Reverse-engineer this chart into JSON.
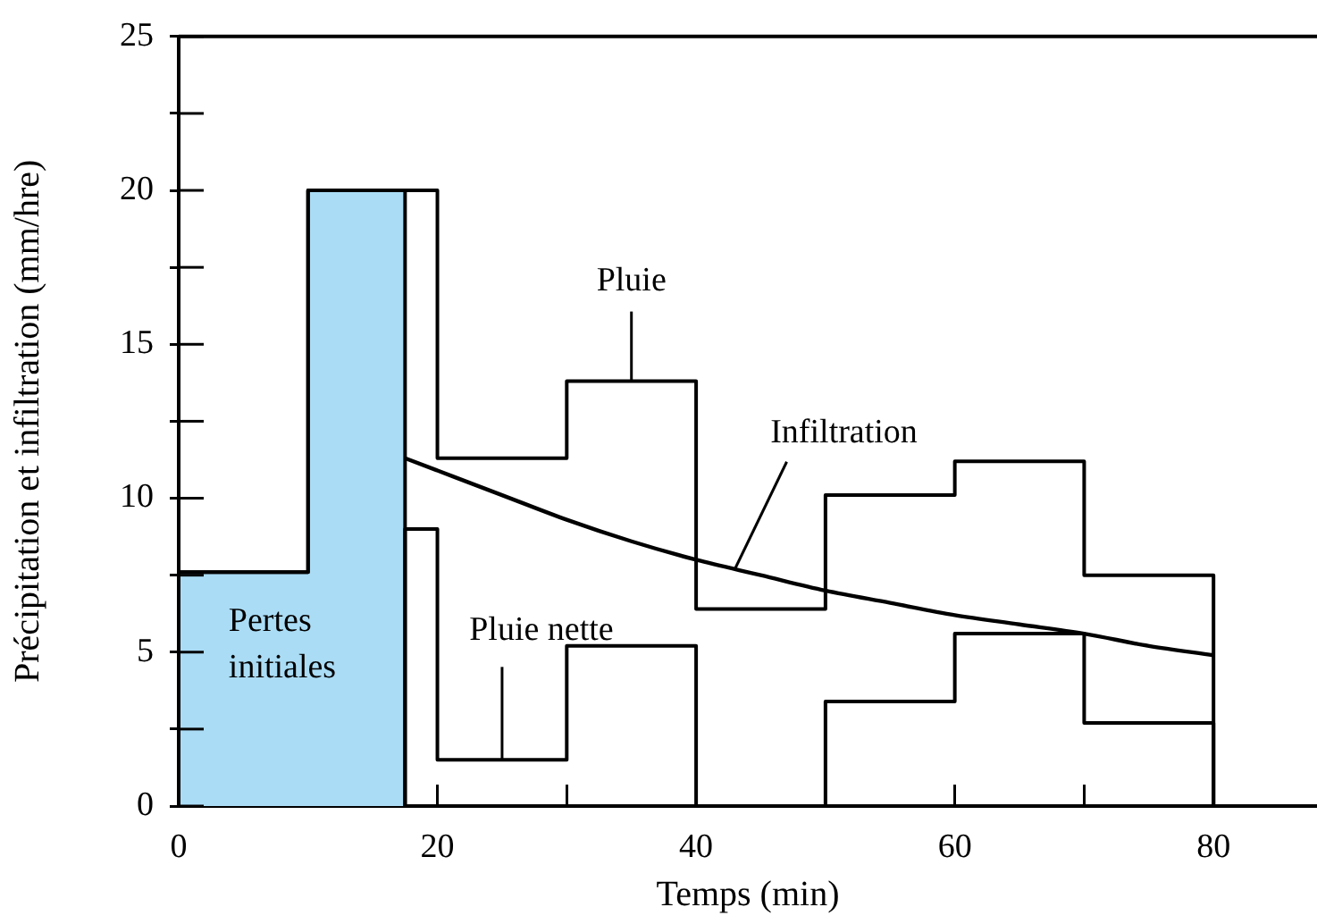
{
  "chart_data": {
    "type": "step",
    "xlabel": "Temps (min)",
    "ylabel": "Précipitation et infiltration (mm/hre)",
    "xlim": [
      0,
      88
    ],
    "xticks": [
      0,
      {
        "value": 10,
        "label": null
      },
      20,
      {
        "value": 30,
        "label": null
      },
      40,
      {
        "value": 50,
        "label": null
      },
      60,
      {
        "value": 70,
        "label": null
      },
      80
    ],
    "ylim": [
      0,
      25
    ],
    "yticks": [
      0,
      {
        "value": 2.5,
        "label": null
      },
      5,
      {
        "value": 7.5,
        "label": null
      },
      10,
      {
        "value": 12.5,
        "label": null
      },
      15,
      {
        "value": 17.5,
        "label": null
      },
      20,
      {
        "value": 22.5,
        "label": null
      },
      25
    ],
    "grid": false,
    "legend": false,
    "series": [
      {
        "type": "area",
        "color": "#aadcf5",
        "x": [
          0,
          10,
          10,
          17.5,
          17.5
        ],
        "values": [
          7.6,
          7.6,
          20,
          20,
          0
        ]
      },
      {
        "color": "#000000",
        "x": [
          0,
          0,
          10,
          20,
          30,
          40,
          50,
          60,
          70,
          80,
          80
        ],
        "values": [
          0,
          7.6,
          20,
          11.3,
          13.8,
          6.4,
          10.1,
          11.2,
          7.5,
          7.5,
          0
        ]
      },
      {
        "color": "#000000",
        "x": [
          17.5,
          17.5,
          20,
          30,
          40,
          50,
          60,
          70,
          80,
          80
        ],
        "values": [
          0,
          9.0,
          1.5,
          5.2,
          0,
          3.4,
          5.6,
          2.7,
          2.7,
          0
        ]
      },
      {
        "type": "line",
        "color": "#000000",
        "x": [
          17.5,
          20,
          25,
          30,
          35,
          40,
          45,
          50,
          55,
          60,
          65,
          70,
          75,
          80
        ],
        "values": [
          11.3,
          10.9,
          10.1,
          9.3,
          8.6,
          8.0,
          7.5,
          7.0,
          6.6,
          6.2,
          5.9,
          5.6,
          5.2,
          4.9
        ]
      }
    ],
    "annotations": [
      "Pertes initiales",
      {
        "text": "Pluie nette",
        "x": 25,
        "y": 1.5
      },
      {
        "text": "Pluie",
        "x": 35,
        "y": 13.8
      },
      {
        "text": "Infiltration",
        "x": 43,
        "y": 7.7
      }
    ]
  }
}
